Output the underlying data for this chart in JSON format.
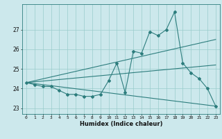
{
  "title": "",
  "xlabel": "Humidex (Indice chaleur)",
  "background_color": "#cce8ec",
  "grid_color": "#99cccc",
  "line_color": "#2d7d7d",
  "xlim": [
    -0.5,
    23.5
  ],
  "ylim": [
    22.7,
    28.3
  ],
  "yticks": [
    23,
    24,
    25,
    26,
    27
  ],
  "xticks": [
    0,
    1,
    2,
    3,
    4,
    5,
    6,
    7,
    8,
    9,
    10,
    11,
    12,
    13,
    14,
    15,
    16,
    17,
    18,
    19,
    20,
    21,
    22,
    23
  ],
  "line1_x": [
    0,
    1,
    2,
    3,
    4,
    5,
    6,
    7,
    8,
    9,
    10,
    11,
    12,
    13,
    14,
    15,
    16,
    17,
    18,
    19,
    20,
    21,
    22,
    23
  ],
  "line1_y": [
    24.3,
    24.2,
    24.1,
    24.1,
    23.9,
    23.7,
    23.7,
    23.6,
    23.6,
    23.7,
    24.4,
    25.3,
    23.8,
    25.9,
    25.8,
    26.9,
    26.7,
    27.0,
    27.9,
    25.3,
    24.8,
    24.5,
    24.0,
    23.1
  ],
  "line2_x": [
    0,
    23
  ],
  "line2_y": [
    24.3,
    26.5
  ],
  "line3_x": [
    0,
    23
  ],
  "line3_y": [
    24.3,
    23.1
  ],
  "line4_x": [
    0,
    23
  ],
  "line4_y": [
    24.3,
    25.2
  ]
}
